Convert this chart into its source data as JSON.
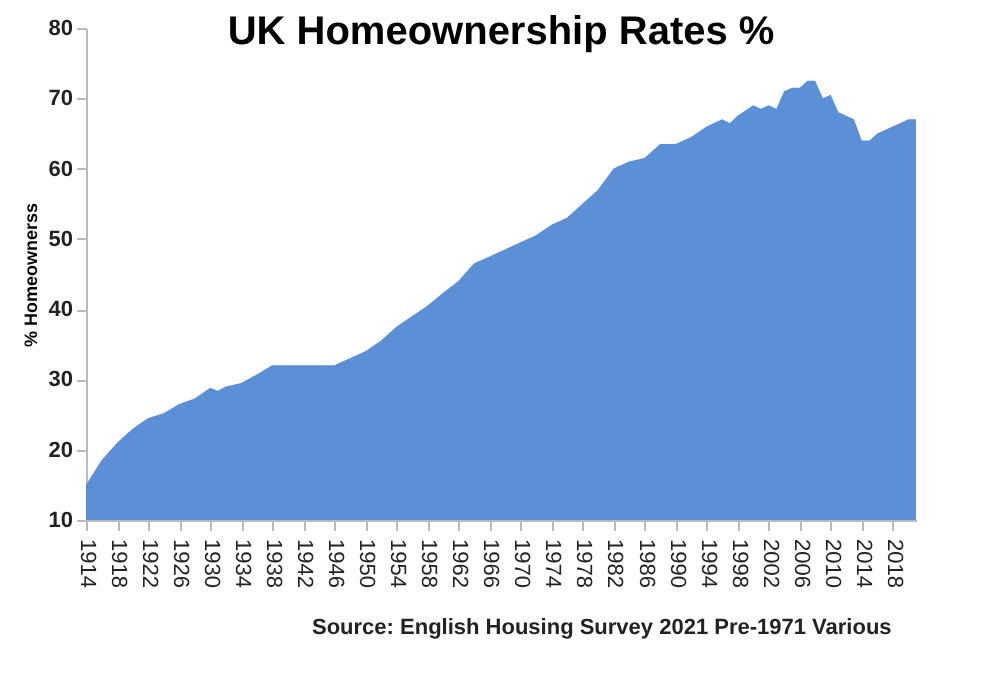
{
  "chart_data": {
    "type": "area",
    "title": "UK Homeownership Rates %",
    "ylabel": "% Homeownerss",
    "x": [
      1914,
      1916,
      1918,
      1920,
      1922,
      1924,
      1926,
      1928,
      1930,
      1931,
      1932,
      1934,
      1936,
      1938,
      1946,
      1948,
      1950,
      1952,
      1954,
      1956,
      1958,
      1960,
      1962,
      1964,
      1966,
      1968,
      1970,
      1972,
      1974,
      1976,
      1978,
      1980,
      1982,
      1984,
      1986,
      1988,
      1990,
      1992,
      1994,
      1996,
      1997,
      1998,
      2000,
      2001,
      2002,
      2003,
      2004,
      2005,
      2006,
      2007,
      2008,
      2009,
      2010,
      2011,
      2012,
      2013,
      2014,
      2015,
      2016,
      2017,
      2018,
      2019,
      2020,
      2021
    ],
    "series": [
      {
        "color": "#5b8fd6",
        "values": [
          15,
          18.5,
          21,
          23,
          24.5,
          25.2,
          26.5,
          27.3,
          28.8,
          28.4,
          29,
          29.5,
          30.7,
          32,
          32,
          33,
          34,
          35.5,
          37.5,
          39,
          40.5,
          42.3,
          44,
          46.5,
          47.5,
          48.5,
          49.5,
          50.5,
          52,
          53,
          55,
          57,
          60,
          61,
          61.5,
          63.5,
          63.5,
          64.5,
          66,
          67,
          66.5,
          67.5,
          69,
          68.5,
          69,
          68.5,
          71,
          71.5,
          71.5,
          72.5,
          72.5,
          70,
          70.5,
          68,
          67.5,
          67,
          64,
          64,
          65,
          65.5,
          66,
          66.5,
          67,
          67
        ]
      }
    ],
    "xlim": [
      1914,
      2021
    ],
    "xticks": [
      1914,
      1918,
      1922,
      1926,
      1930,
      1934,
      1938,
      1942,
      1946,
      1950,
      1954,
      1958,
      1962,
      1966,
      1970,
      1974,
      1978,
      1982,
      1986,
      1990,
      1994,
      1998,
      2002,
      2006,
      2010,
      2014,
      2018
    ],
    "ylim": [
      10,
      80
    ],
    "yticks": [
      10,
      20,
      30,
      40,
      50,
      60,
      70,
      80
    ],
    "grid": false,
    "legend": false,
    "annotations": [
      "Source: English Housing Survey 2021 Pre-1971 Various"
    ]
  }
}
